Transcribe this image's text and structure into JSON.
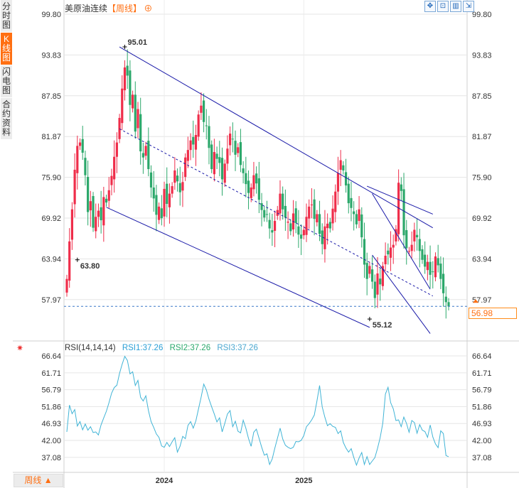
{
  "side_tabs": [
    {
      "label": "分时图",
      "active": false
    },
    {
      "label": "K线图",
      "active": true
    },
    {
      "label": "闪电图",
      "active": false
    },
    {
      "label": "合约资料",
      "active": false
    }
  ],
  "header": {
    "instrument": "美原油连续",
    "period": "【周线】",
    "toolbar_icons": [
      "fit-icon",
      "crosshair-icon",
      "table-icon",
      "fullscreen-icon"
    ]
  },
  "rsi_legend": {
    "title": "RSI(14,14,14)",
    "rsi1": "RSI1:37.26",
    "rsi2": "RSI2:37.26",
    "rsi3": "RSI3:37.26"
  },
  "period_button": "周线 ▲",
  "current_price": "56.98",
  "colors": {
    "up": "#ef2d4a",
    "down": "#2ca86b",
    "accent": "#ff6f12",
    "channel": "#1919a8",
    "rsi": "#41b4d6",
    "grid": "#e6e6e6"
  },
  "chart_data": [
    {
      "type": "candlestick",
      "title": "美原油连续",
      "period": "周线",
      "y_ticks": [
        99.8,
        93.83,
        87.85,
        81.87,
        75.9,
        69.92,
        63.94,
        57.97
      ],
      "x_ticks": [
        "2024",
        "2025"
      ],
      "annotations": [
        {
          "label": "95.01",
          "kind": "high",
          "value": 95.01
        },
        {
          "label": "63.80",
          "kind": "low",
          "value": 63.8
        },
        {
          "label": "55.12",
          "kind": "low",
          "value": 55.12
        }
      ],
      "last_price": 56.98,
      "close_series": [
        61.0,
        66.5,
        71.2,
        77.0,
        80.5,
        81.0,
        79.5,
        76.2,
        70.8,
        72.4,
        68.5,
        70.1,
        71.0,
        69.6,
        73.0,
        72.2,
        74.0,
        76.1,
        78.9,
        81.0,
        84.6,
        88.9,
        92.0,
        90.8,
        86.5,
        88.0,
        82.6,
        85.9,
        79.7,
        78.8,
        80.5,
        77.1,
        74.4,
        72.8,
        70.4,
        71.6,
        69.9,
        74.2,
        72.0,
        73.5,
        74.6,
        76.9,
        75.3,
        73.7,
        75.2,
        78.8,
        79.9,
        81.3,
        80.7,
        82.1,
        85.1,
        86.4,
        84.0,
        83.4,
        80.2,
        77.1,
        79.6,
        78.6,
        78.0,
        75.6,
        77.9,
        80.1,
        82.3,
        81.5,
        79.2,
        80.3,
        77.7,
        76.5,
        74.9,
        73.6,
        74.4,
        76.2,
        75.0,
        72.6,
        71.1,
        70.0,
        70.4,
        68.4,
        67.8,
        69.5,
        71.1,
        73.5,
        71.2,
        70.0,
        69.4,
        68.0,
        70.6,
        69.2,
        67.5,
        66.9,
        68.2,
        70.1,
        71.6,
        71.9,
        69.8,
        70.5,
        67.6,
        66.1,
        68.7,
        69.1,
        68.4,
        71.3,
        73.8,
        76.5,
        78.4,
        76.9,
        74.7,
        72.1,
        71.4,
        70.5,
        69.0,
        71.2,
        67.1,
        63.1,
        61.0,
        62.9,
        60.6,
        58.2,
        61.8,
        60.2,
        62.9,
        64.4,
        64.6,
        65.6,
        66.0,
        68.3,
        75.1,
        73.9,
        67.4,
        65.5,
        65.1,
        66.0,
        68.2,
        67.1,
        65.1,
        63.8,
        62.8,
        63.5,
        61.6,
        62.0,
        64.3,
        63.0,
        61.0,
        58.9,
        57.6,
        56.98
      ],
      "channel_lines": [
        {
          "name": "upper",
          "from": [
            20,
            95.01
          ],
          "to": [
            139,
            68.5
          ]
        },
        {
          "name": "middle",
          "from": [
            20,
            83.0
          ],
          "to": [
            139,
            58.5
          ]
        },
        {
          "name": "lower",
          "from": [
            15,
            71.5
          ],
          "to": [
            115,
            53.9
          ]
        },
        {
          "name": "resistance",
          "from": [
            114,
            74.6
          ],
          "to": [
            139,
            70.5
          ]
        },
        {
          "name": "steep-upper",
          "from": [
            116,
            73.5
          ],
          "to": [
            138,
            59.5
          ]
        },
        {
          "name": "steep-lower",
          "from": [
            116,
            64.5
          ],
          "to": [
            138,
            53.0
          ]
        }
      ]
    },
    {
      "type": "line",
      "title": "RSI(14,14,14)",
      "y_ticks": [
        66.64,
        61.71,
        56.79,
        51.86,
        46.93,
        42.0,
        37.08
      ],
      "series": [
        {
          "name": "RSI1",
          "last": 37.26
        },
        {
          "name": "RSI2",
          "last": 37.26
        },
        {
          "name": "RSI3",
          "last": 37.26
        }
      ],
      "values": [
        44.5,
        52.3,
        49.8,
        51.0,
        46.2,
        47.5,
        45.1,
        46.8,
        45.0,
        46.0,
        44.3,
        44.5,
        43.6,
        46.5,
        48.5,
        50.5,
        53.0,
        55.8,
        57.4,
        58.1,
        61.5,
        64.2,
        66.5,
        65.3,
        61.4,
        62.0,
        58.0,
        59.5,
        54.6,
        53.5,
        55.0,
        50.7,
        47.5,
        45.8,
        43.9,
        42.9,
        40.4,
        40.0,
        41.4,
        40.2,
        41.6,
        42.8,
        38.6,
        40.3,
        43.2,
        42.5,
        46.4,
        47.5,
        45.6,
        47.7,
        51.2,
        54.6,
        58.4,
        56.7,
        54.0,
        51.8,
        49.7,
        47.4,
        48.6,
        44.5,
        47.0,
        49.7,
        50.7,
        46.0,
        47.6,
        44.7,
        44.2,
        47.9,
        45.6,
        42.6,
        40.3,
        44.4,
        45.3,
        42.6,
        40.0,
        37.7,
        38.1,
        35.0,
        36.6,
        39.8,
        42.7,
        45.6,
        42.4,
        40.6,
        40.0,
        39.6,
        40.0,
        41.7,
        41.6,
        42.0,
        43.4,
        46.0,
        46.9,
        48.0,
        49.4,
        53.5,
        58.0,
        51.8,
        48.8,
        46.3,
        46.9,
        46.1,
        45.8,
        44.0,
        44.8,
        41.4,
        39.8,
        38.6,
        39.6,
        37.0,
        34.8,
        36.9,
        38.5,
        35.0,
        37.3,
        35.0,
        36.0,
        37.0,
        39.7,
        42.8,
        47.0,
        55.5,
        57.5,
        53.0,
        51.2,
        47.8,
        48.0,
        46.0,
        48.8,
        47.0,
        44.4,
        47.8,
        47.2,
        44.1,
        46.6,
        45.0,
        44.6,
        42.9,
        46.5,
        43.0,
        41.0,
        39.9,
        44.8,
        44.0,
        37.6,
        37.26
      ]
    }
  ]
}
